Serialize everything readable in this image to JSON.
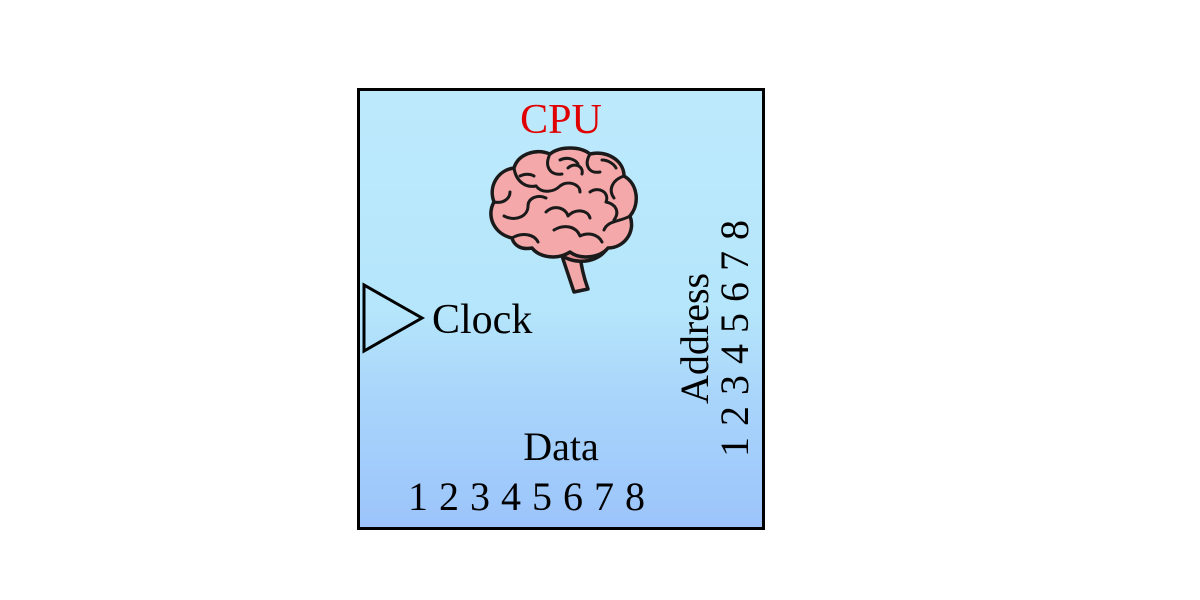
{
  "block": {
    "title": "CPU",
    "title_color": "#e00000",
    "icon": "brain-icon",
    "clock_label": "Clock",
    "data_label": "Data",
    "data_pins": "1 2 3 4 5 6 7 8",
    "address_label": "Address",
    "address_pins": "1 2 3 4 5 6 7 8",
    "background_top": "#bde9fc",
    "background_bottom": "#9cc4fb",
    "border_color": "#000000"
  }
}
